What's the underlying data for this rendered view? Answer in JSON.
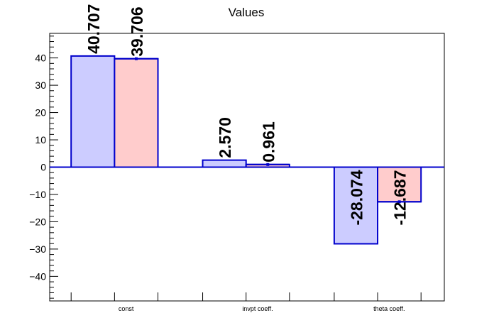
{
  "chart_data": {
    "type": "bar",
    "title": "Values",
    "xlabel": "",
    "ylabel": "",
    "categories": [
      "const",
      "invpt coeff.",
      "theta coeff."
    ],
    "series": [
      {
        "values": [
          40.707,
          2.57,
          -28.074
        ],
        "value_labels": [
          "40.707",
          "2.570",
          "-28.074"
        ],
        "fill": "#ccccff",
        "stroke": "#0000cc",
        "error_bars": false
      },
      {
        "values": [
          39.706,
          0.961,
          -12.687
        ],
        "value_labels": [
          "39.706",
          "0.961",
          "-12.687"
        ],
        "fill": "#ffcccc",
        "stroke": "#0000cc",
        "error_bars": true
      }
    ],
    "yticks": [
      -40,
      -30,
      -20,
      -10,
      0,
      10,
      20,
      30,
      40
    ],
    "ylim": [
      -49,
      49
    ],
    "grid": false,
    "zero_line": true,
    "legend": "none"
  }
}
